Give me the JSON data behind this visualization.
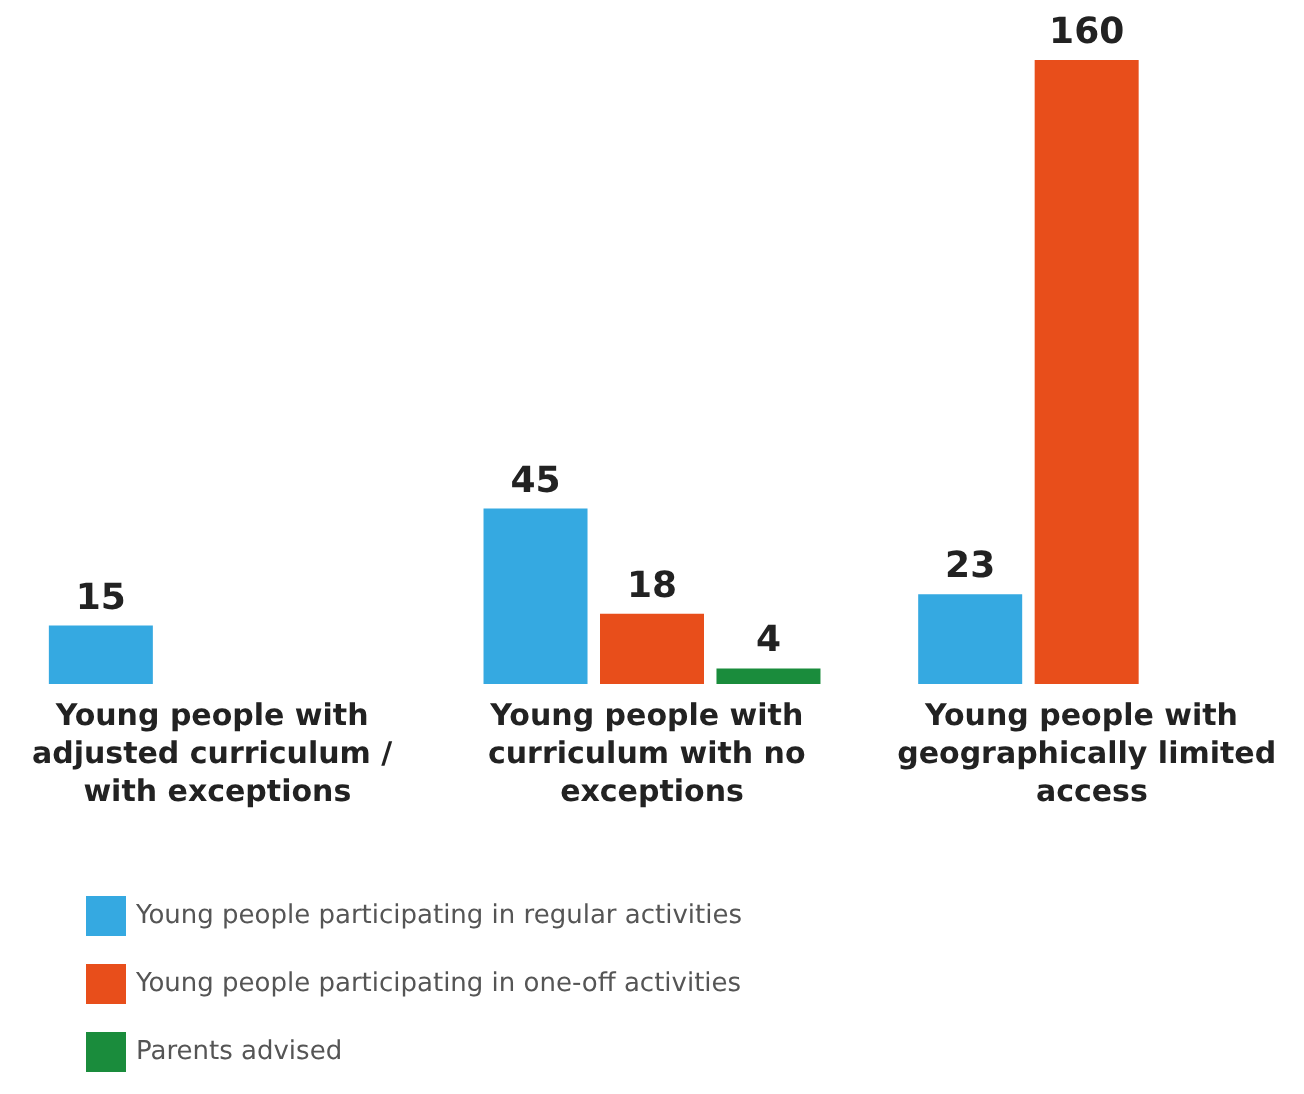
{
  "chart_data": {
    "type": "bar",
    "categories": [
      "Young people with adjusted curriculum / with exceptions",
      "Young people with curriculum with no exceptions",
      "Young people with geographically limited access"
    ],
    "series": [
      {
        "name": "Young people participating in regular activities",
        "color": "#35a9e1",
        "values": [
          15,
          45,
          23
        ]
      },
      {
        "name": "Young people participating in one-off activities",
        "color": "#e84e1b",
        "values": [
          null,
          18,
          160
        ]
      },
      {
        "name": "Parents advised",
        "color": "#1a8c3c",
        "values": [
          null,
          4,
          null
        ]
      }
    ],
    "data_labels": true,
    "legend": "bottom left"
  }
}
